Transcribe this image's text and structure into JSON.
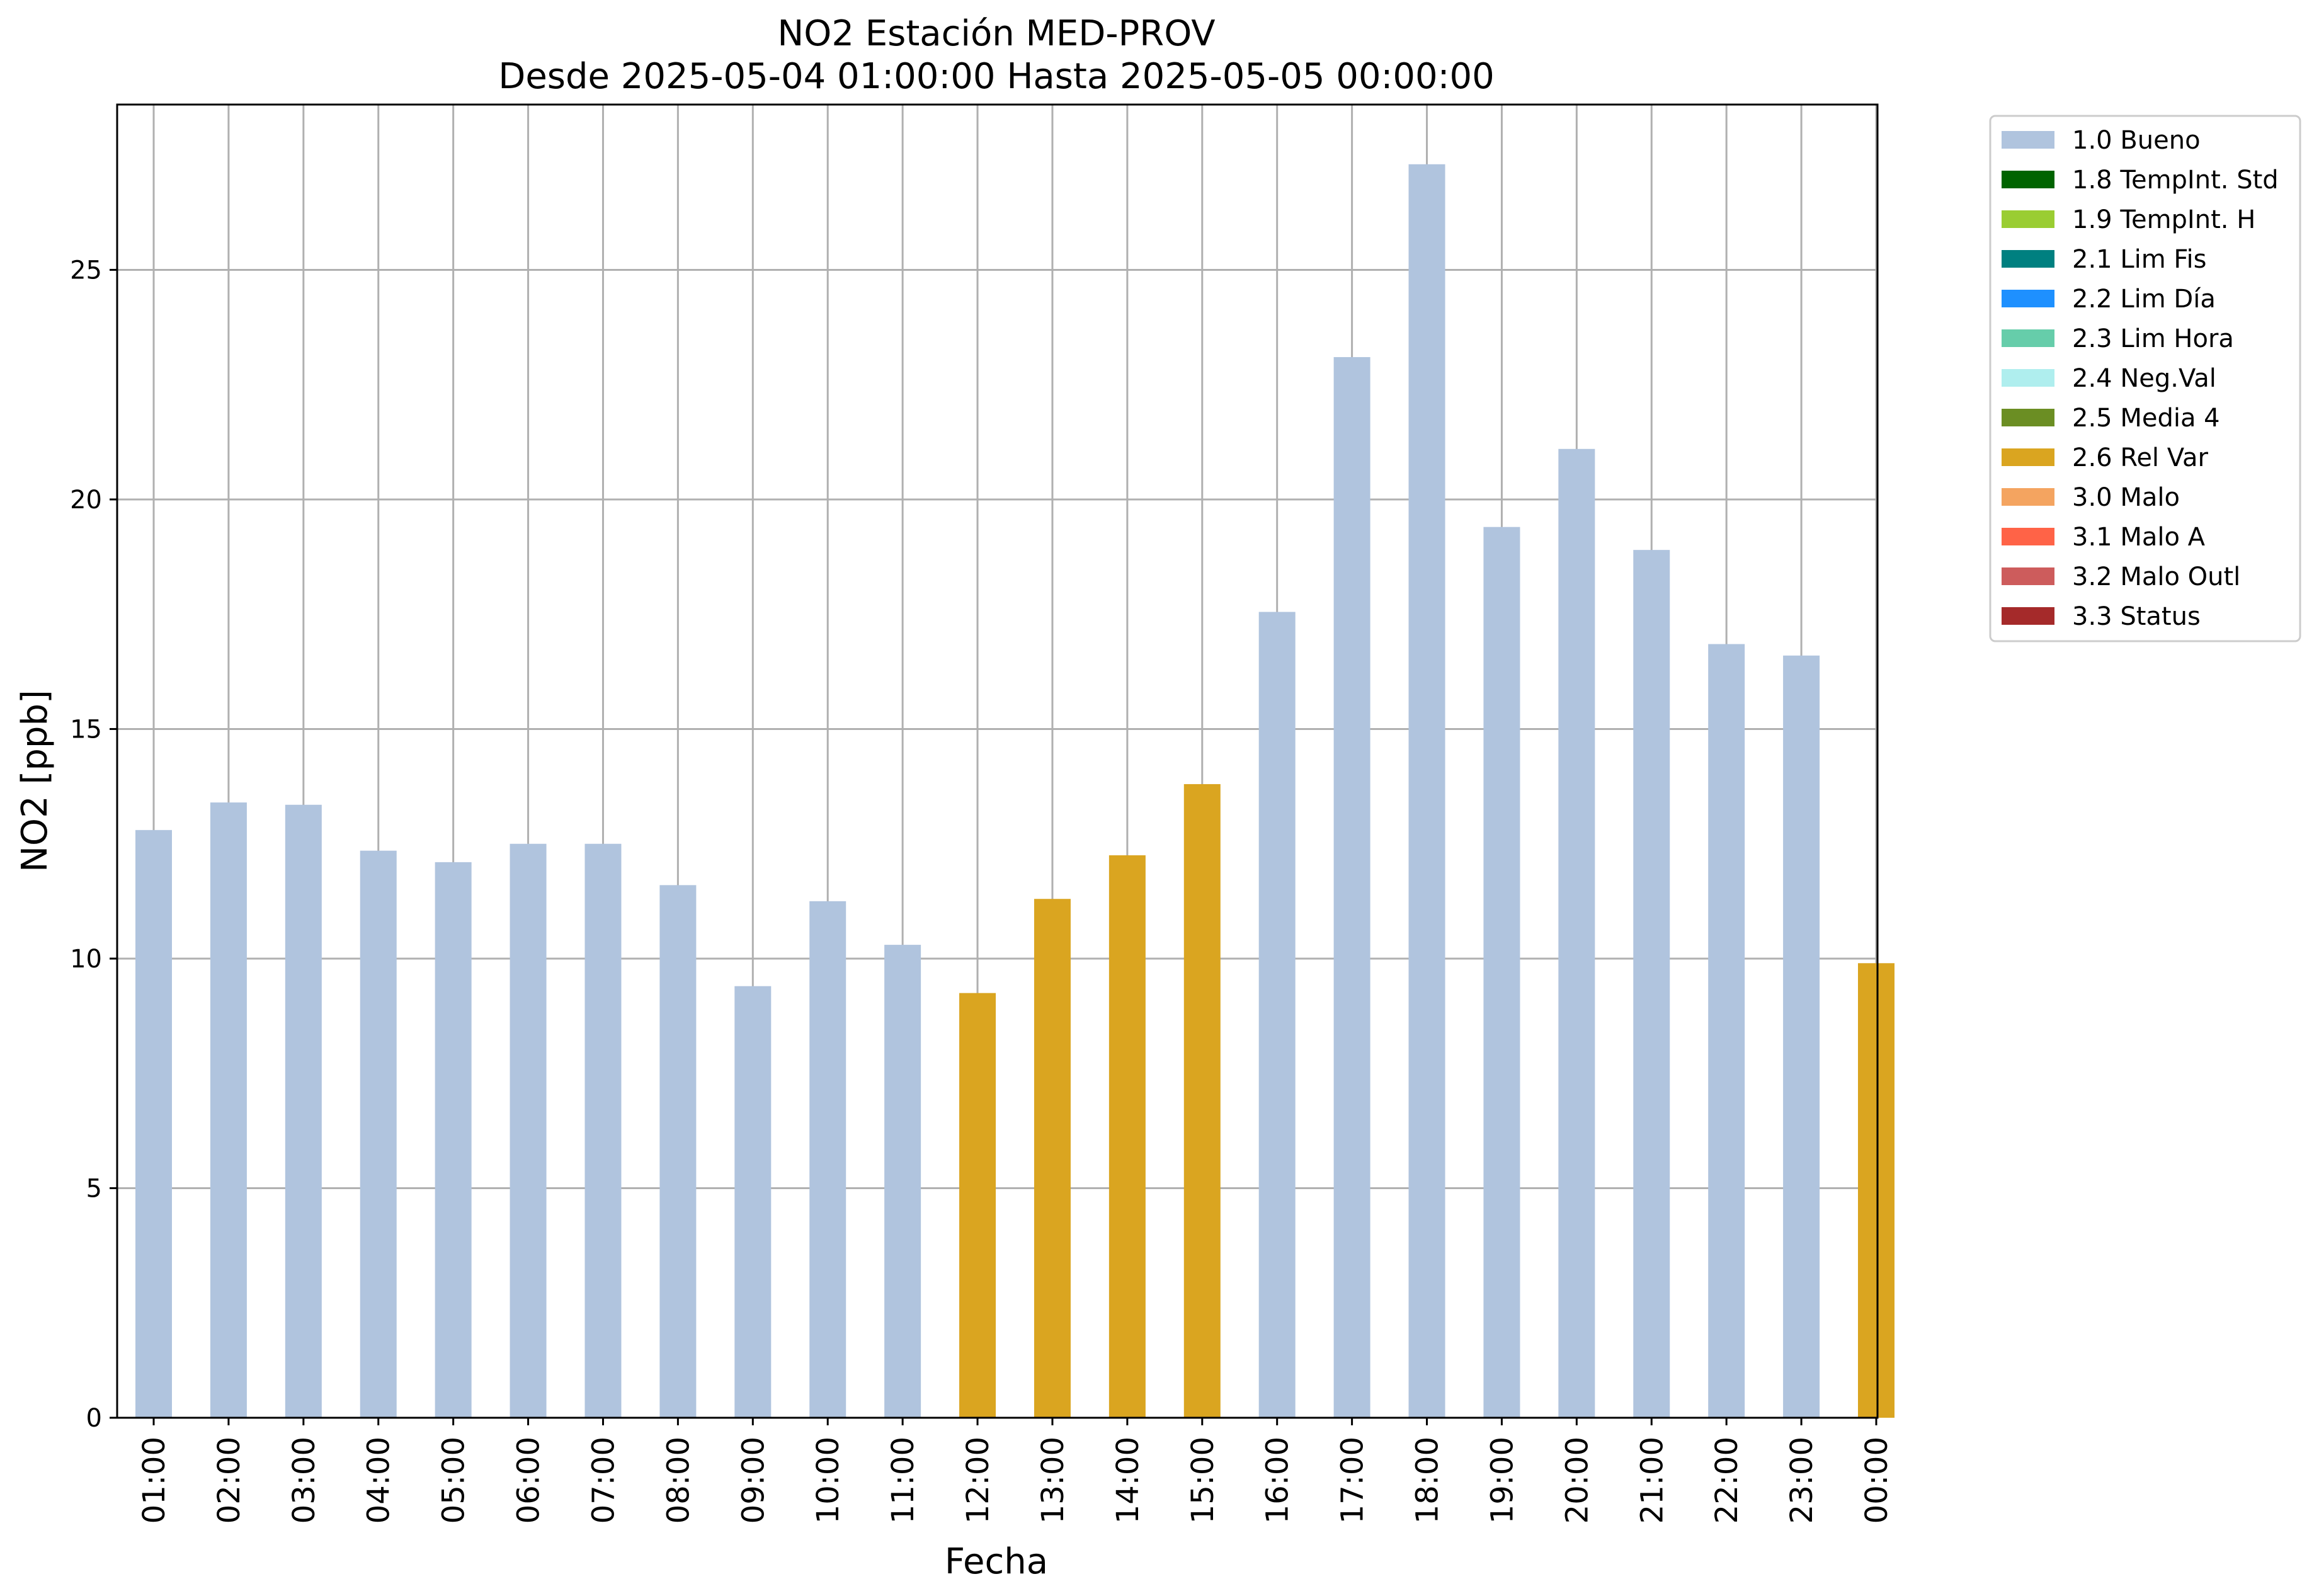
{
  "chart_data": {
    "type": "bar",
    "title": "NO2 Estación MED-PROV",
    "subtitle": "Desde 2025-05-04 01:00:00 Hasta 2025-05-05 00:00:00",
    "xlabel": "Fecha",
    "ylabel": "NO2 [ppb]",
    "ylim": [
      0,
      28.6
    ],
    "yticks": [
      "0",
      "5",
      "10",
      "15",
      "20",
      "25"
    ],
    "grid": true,
    "legend_position": "outside-top-right",
    "categories": [
      "01:00",
      "02:00",
      "03:00",
      "04:00",
      "05:00",
      "06:00",
      "07:00",
      "08:00",
      "09:00",
      "10:00",
      "11:00",
      "12:00",
      "13:00",
      "14:00",
      "15:00",
      "16:00",
      "17:00",
      "18:00",
      "19:00",
      "20:00",
      "21:00",
      "22:00",
      "23:00",
      "00:00"
    ],
    "values": [
      12.8,
      13.4,
      13.35,
      12.35,
      12.1,
      12.5,
      12.5,
      11.6,
      9.4,
      11.25,
      10.3,
      9.25,
      11.3,
      12.25,
      13.8,
      17.55,
      23.1,
      27.3,
      19.4,
      21.1,
      18.9,
      16.85,
      16.6,
      9.9
    ],
    "flags": [
      "1.0 Bueno",
      "1.0 Bueno",
      "1.0 Bueno",
      "1.0 Bueno",
      "1.0 Bueno",
      "1.0 Bueno",
      "1.0 Bueno",
      "1.0 Bueno",
      "1.0 Bueno",
      "1.0 Bueno",
      "1.0 Bueno",
      "2.6 Rel Var",
      "2.6 Rel Var",
      "2.6 Rel Var",
      "2.6 Rel Var",
      "1.0 Bueno",
      "1.0 Bueno",
      "1.0 Bueno",
      "1.0 Bueno",
      "1.0 Bueno",
      "1.0 Bueno",
      "1.0 Bueno",
      "1.0 Bueno",
      "2.6 Rel Var"
    ],
    "legend": [
      {
        "label": "1.0 Bueno",
        "color": "#b0c4de"
      },
      {
        "label": "1.8 TempInt. Std",
        "color": "#006400"
      },
      {
        "label": "1.9 TempInt. H",
        "color": "#9acd32"
      },
      {
        "label": "2.1 Lim Fis",
        "color": "#008080"
      },
      {
        "label": "2.2 Lim Día",
        "color": "#1e90ff"
      },
      {
        "label": "2.3 Lim Hora",
        "color": "#66cdaa"
      },
      {
        "label": "2.4 Neg.Val",
        "color": "#afeeee"
      },
      {
        "label": "2.5 Media 4",
        "color": "#6b8e23"
      },
      {
        "label": "2.6 Rel Var",
        "color": "#daa520"
      },
      {
        "label": "3.0 Malo",
        "color": "#f4a460"
      },
      {
        "label": "3.1 Malo A",
        "color": "#ff6347"
      },
      {
        "label": "3.2 Malo Outl",
        "color": "#cd5c5c"
      },
      {
        "label": "3.3 Status",
        "color": "#a52a2a"
      }
    ]
  }
}
